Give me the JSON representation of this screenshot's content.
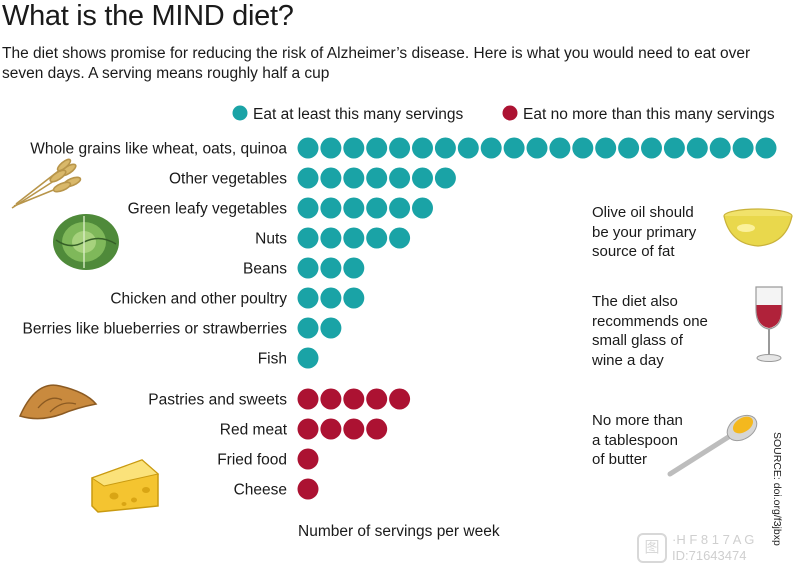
{
  "title": "What is the MIND diet?",
  "subtitle": "The diet shows promise for reducing the risk of Alzheimer’s disease. Here is what you would need to eat over seven days. A serving means roughly half a cup",
  "colors": {
    "at_least": "#1aa3a6",
    "no_more": "#ac1232"
  },
  "chart_data": {
    "type": "bar",
    "xlabel": "Number of servings per week",
    "categories": [
      "Whole grains like wheat, oats, quinoa",
      "Other vegetables",
      "Green leafy vegetables",
      "Nuts",
      "Beans",
      "Chicken and other poultry",
      "Berries like blueberries or strawberries",
      "Fish",
      "Pastries and sweets",
      "Red meat",
      "Fried food",
      "Cheese"
    ],
    "values": [
      21,
      7,
      6,
      5,
      3,
      3,
      2,
      1,
      5,
      4,
      1,
      1
    ],
    "groups": [
      "at_least",
      "at_least",
      "at_least",
      "at_least",
      "at_least",
      "at_least",
      "at_least",
      "at_least",
      "no_more",
      "no_more",
      "no_more",
      "no_more"
    ],
    "legend": [
      {
        "key": "at_least",
        "label": "Eat at least this many servings"
      },
      {
        "key": "no_more",
        "label": "Eat no more than this many servings"
      }
    ],
    "legend_position": "top"
  },
  "notes": [
    {
      "text": "Olive oil should\nbe your primary\nsource of fat",
      "icon": "olive-oil-bowl-icon"
    },
    {
      "text": "The diet also\nrecommends one\nsmall glass of\nwine a day",
      "icon": "wine-glass-icon"
    },
    {
      "text": "No more than\na tablespoon\nof butter",
      "icon": "butter-spoon-icon"
    }
  ],
  "source": "SOURCE: doi.org/f3jbxp",
  "watermark": {
    "line1": "·H F 8 1 7 A G",
    "line2": "ID:71643474"
  },
  "icons": [
    "wheat-icon",
    "cabbage-icon",
    "pastry-icon",
    "cheese-icon"
  ]
}
